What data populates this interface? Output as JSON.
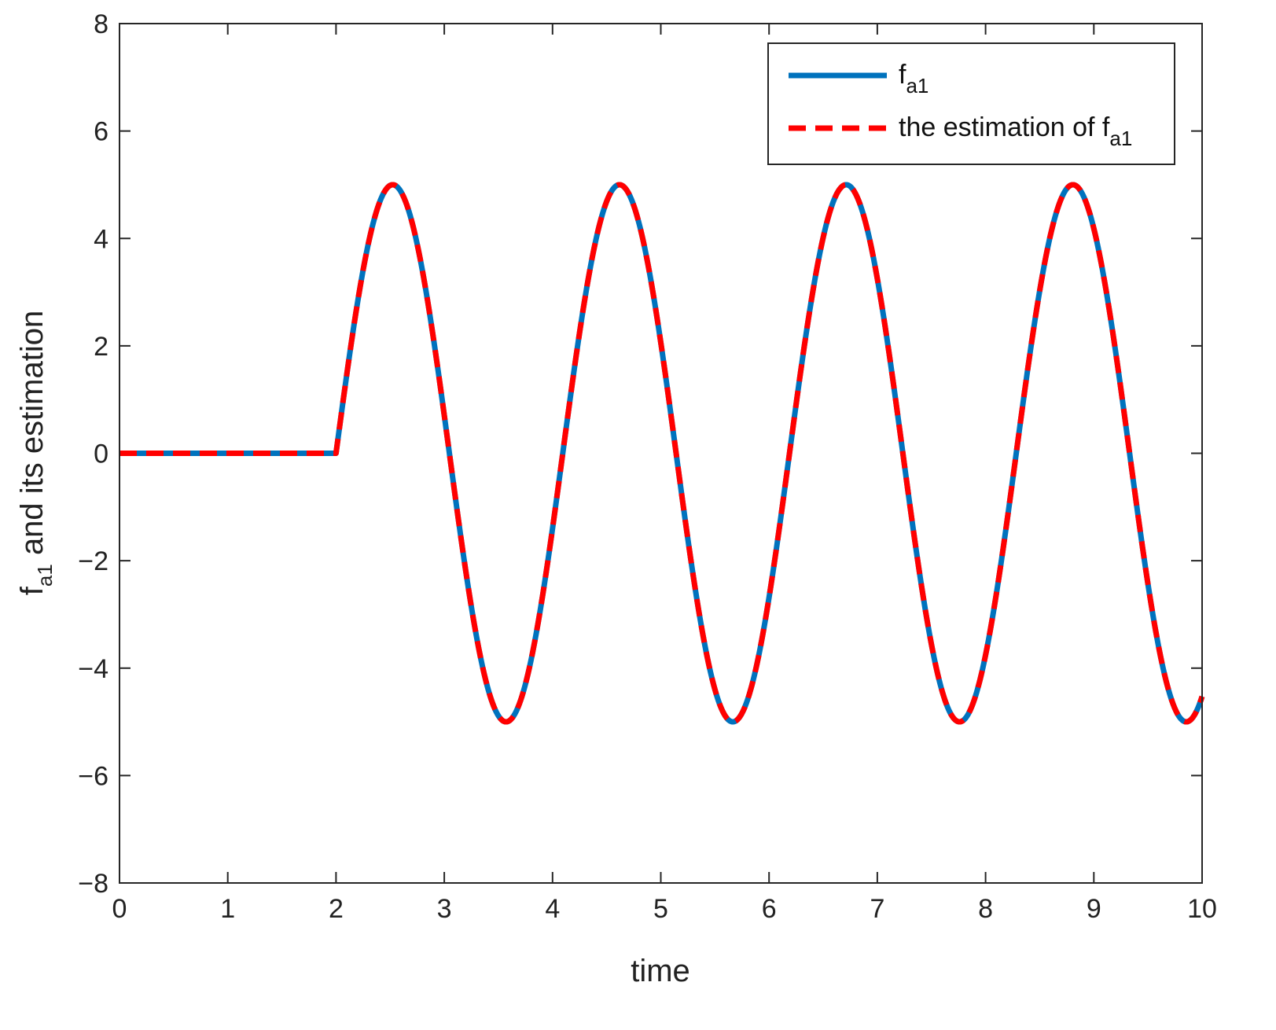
{
  "chart_data": {
    "type": "line",
    "xlabel": "time",
    "ylabel": {
      "base": "f",
      "subscript": "a1",
      "rest": " and its estimation"
    },
    "xlim": [
      0,
      10
    ],
    "ylim": [
      -8,
      8
    ],
    "xticks": [
      0,
      1,
      2,
      3,
      4,
      5,
      6,
      7,
      8,
      9,
      10
    ],
    "yticks": [
      -8,
      -6,
      -4,
      -2,
      0,
      2,
      4,
      6,
      8
    ],
    "ytick_labels": [
      "−8",
      "−6",
      "−4",
      "−2",
      "0",
      "2",
      "4",
      "6",
      "8"
    ],
    "grid": false,
    "legend_position": "top-right",
    "function": {
      "before_t": 2,
      "value_before": 0,
      "amplitude": 5,
      "angular_frequency": 3,
      "phase_reference": 2
    },
    "series": [
      {
        "name": {
          "base": "f",
          "subscript": "a1"
        },
        "style": "solid",
        "color": "#0072BD"
      },
      {
        "name": {
          "base": "the estimation of f",
          "subscript": "a1"
        },
        "style": "dashed",
        "color": "#FF0000"
      }
    ]
  }
}
